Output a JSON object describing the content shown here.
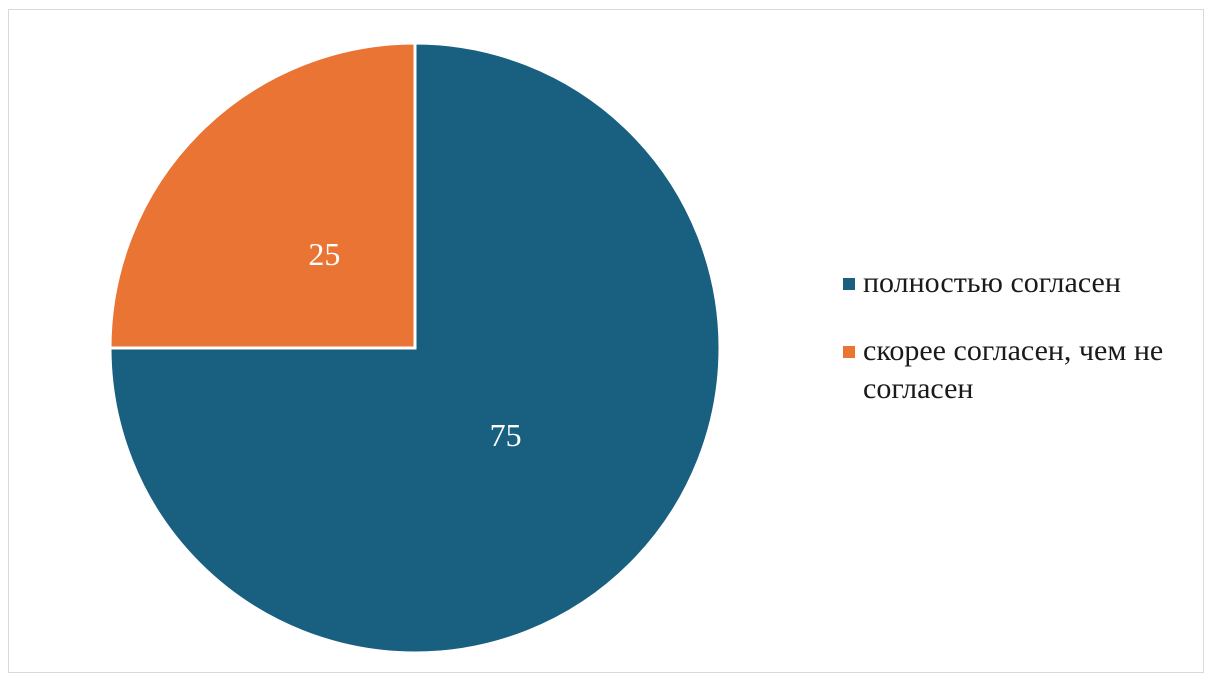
{
  "chart_data": {
    "type": "pie",
    "categories": [
      "полностью согласен",
      "скорее согласен, чем не согласен"
    ],
    "values": [
      75,
      25
    ],
    "colors": [
      "#185F80",
      "#E97434"
    ],
    "data_labels": [
      "75",
      "25"
    ],
    "legend_position": "right",
    "title": ""
  }
}
